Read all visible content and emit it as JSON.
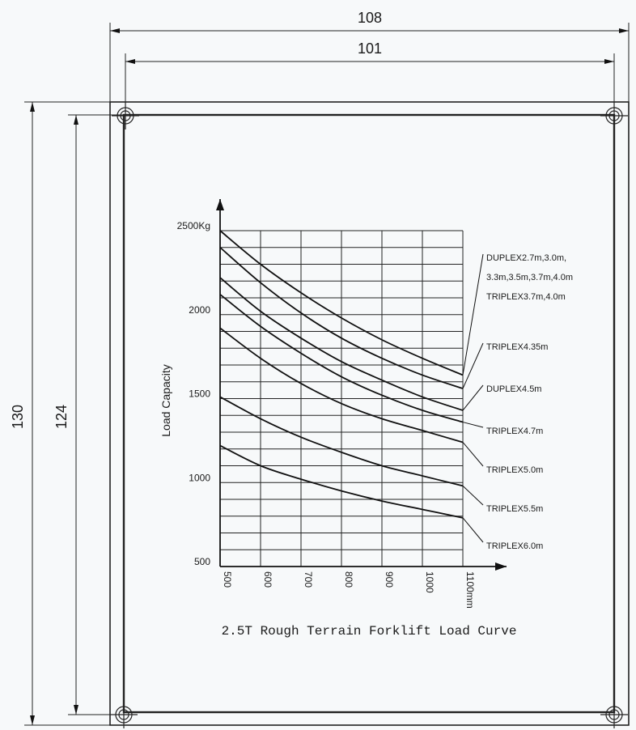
{
  "dimensions": {
    "outer_width": "108",
    "inner_width": "101",
    "outer_height": "130",
    "inner_height": "124"
  },
  "chart_data": {
    "type": "line",
    "title": "2.5T Rough Terrain Forklift Load Curve",
    "ylabel": "Load Capacity",
    "y_unit": "Kg",
    "x_unit": "mm",
    "xlim": [
      500,
      1100
    ],
    "ylim": [
      500,
      2500
    ],
    "x_ticks": [
      500,
      600,
      700,
      800,
      900,
      1000,
      1100
    ],
    "x_tick_labels": [
      "500",
      "600",
      "700",
      "800",
      "900",
      "1000",
      "1100mm"
    ],
    "y_ticks": [
      500,
      1000,
      1500,
      2000,
      2500
    ],
    "y_tick_labels": [
      "500",
      "1000",
      "1500",
      "2000",
      "2500Kg"
    ],
    "grid": true,
    "x": [
      500,
      600,
      700,
      800,
      900,
      1000,
      1100
    ],
    "series": [
      {
        "name": "DUPLEX2.7m,3.0m, 3.3m,3.5m,3.7m,4.0m TRIPLEX3.7m,4.0m",
        "label_lines": [
          "DUPLEX2.7m,3.0m,",
          "3.3m,3.5m,3.7m,4.0m",
          "TRIPLEX3.7m,4.0m"
        ],
        "values": [
          2500,
          2300,
          2130,
          1980,
          1850,
          1740,
          1640
        ]
      },
      {
        "name": "TRIPLEX4.35m",
        "label_lines": [
          "TRIPLEX4.35m"
        ],
        "values": [
          2400,
          2190,
          2010,
          1860,
          1740,
          1640,
          1560
        ]
      },
      {
        "name": "DUPLEX4.5m",
        "label_lines": [
          "DUPLEX4.5m"
        ],
        "values": [
          2220,
          2020,
          1860,
          1720,
          1610,
          1510,
          1430
        ]
      },
      {
        "name": "TRIPLEX4.7m",
        "label_lines": [
          "TRIPLEX4.7m"
        ],
        "values": [
          2120,
          1930,
          1770,
          1630,
          1520,
          1430,
          1360
        ]
      },
      {
        "name": "TRIPLEX5.0m",
        "label_lines": [
          "TRIPLEX5.0m"
        ],
        "values": [
          1920,
          1740,
          1590,
          1470,
          1380,
          1310,
          1240
        ]
      },
      {
        "name": "TRIPLEX5.5m",
        "label_lines": [
          "TRIPLEX5.5m"
        ],
        "values": [
          1510,
          1380,
          1270,
          1180,
          1100,
          1040,
          980
        ]
      },
      {
        "name": "TRIPLEX6.0m",
        "label_lines": [
          "TRIPLEX6.0m"
        ],
        "values": [
          1220,
          1100,
          1020,
          950,
          890,
          840,
          790
        ]
      }
    ]
  }
}
